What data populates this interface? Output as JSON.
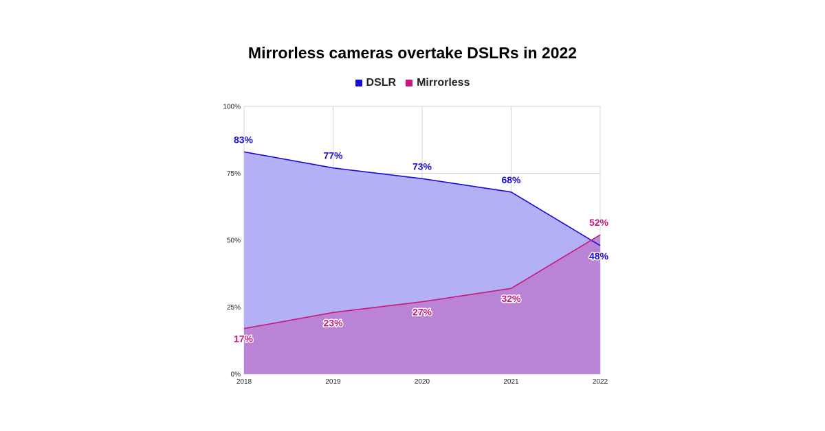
{
  "chart_data": {
    "type": "area",
    "title": "Mirrorless cameras overtake DSLRs in 2022",
    "xlabel": "",
    "ylabel": "",
    "categories": [
      "2018",
      "2019",
      "2020",
      "2021",
      "2022"
    ],
    "ylim": [
      0,
      100
    ],
    "yticks": [
      0,
      25,
      50,
      75,
      100
    ],
    "ytick_labels": [
      "0%",
      "25%",
      "50%",
      "75%",
      "100%"
    ],
    "grid": true,
    "legend": "top-center",
    "series": [
      {
        "name": "DSLR",
        "color": "#1b0bd6",
        "fill": "#b3b0f5",
        "values": [
          83,
          77,
          73,
          68,
          48
        ],
        "labels": [
          "83%",
          "77%",
          "73%",
          "68%",
          "48%"
        ]
      },
      {
        "name": "Mirrorless",
        "color": "#c8187e",
        "fill": "#bb7fd2",
        "values": [
          17,
          23,
          27,
          32,
          52
        ],
        "labels": [
          "17%",
          "23%",
          "27%",
          "32%",
          "52%"
        ]
      }
    ]
  }
}
